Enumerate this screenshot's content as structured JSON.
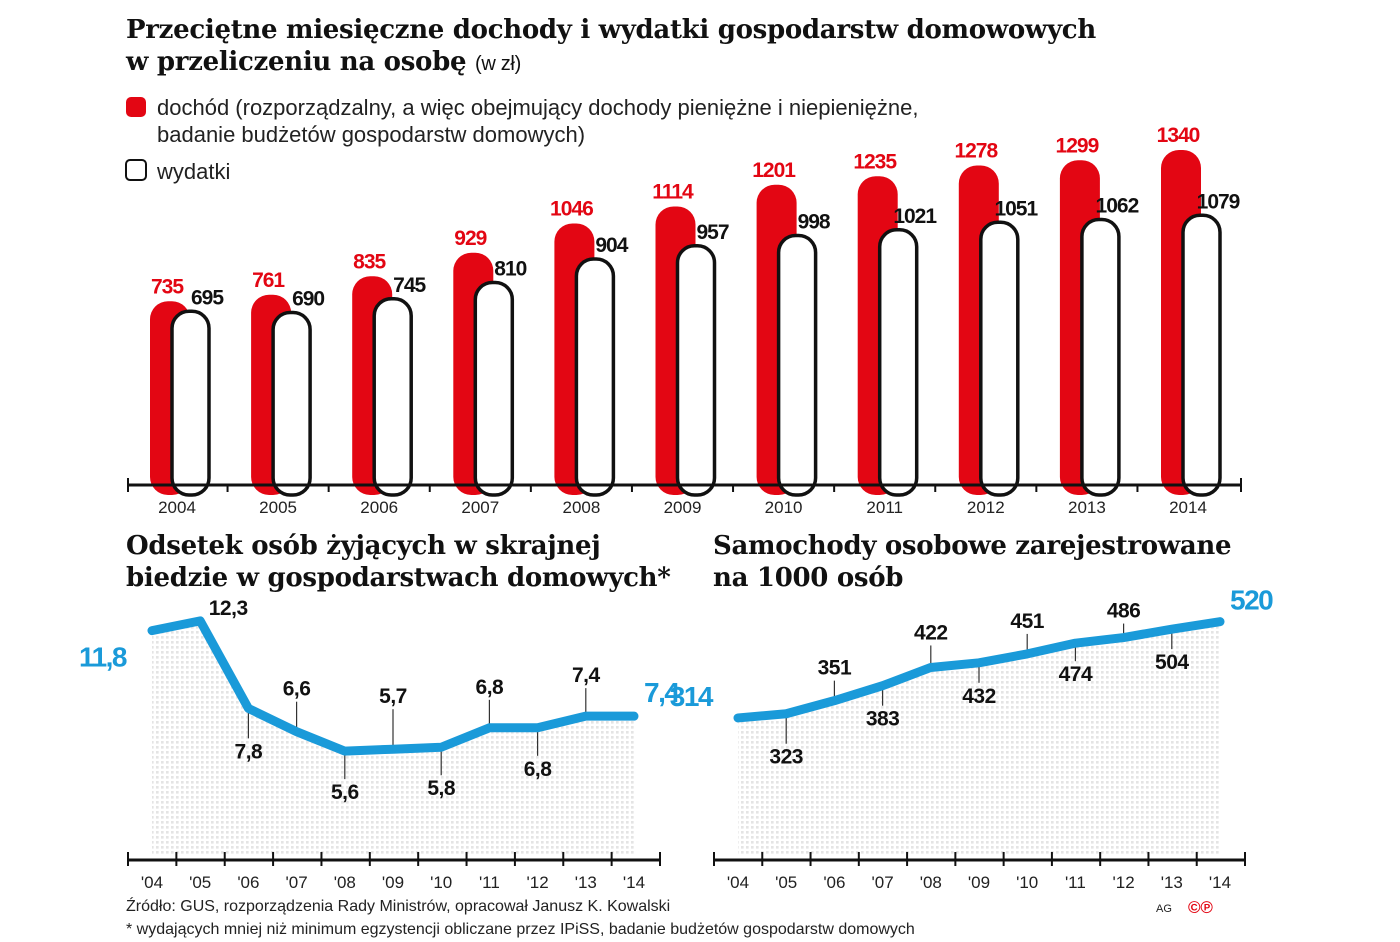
{
  "main_title": {
    "line1": "Przeciętne miesięczne dochody i wydatki gospodarstw domowowych",
    "line2": "w przeliczeniu na osobę",
    "unit": "(w zł)"
  },
  "legend": {
    "income_line1": "dochód (rozporządzalny, a więc obejmujący dochody pieniężne i niepieniężne,",
    "income_line2": "badanie budżetów gospodarstw domowych)",
    "expenses": "wydatki"
  },
  "colors": {
    "income": "#e30613",
    "expenses": "#ffffff",
    "line": "#1a9ad9",
    "text": "#111111"
  },
  "chart_data": [
    {
      "type": "bar",
      "categories": [
        "2004",
        "2005",
        "2006",
        "2007",
        "2008",
        "2009",
        "2010",
        "2011",
        "2012",
        "2013",
        "2014"
      ],
      "series": [
        {
          "name": "dochód",
          "values": [
            735,
            761,
            835,
            929,
            1046,
            1114,
            1201,
            1235,
            1278,
            1299,
            1340
          ]
        },
        {
          "name": "wydatki",
          "values": [
            695,
            690,
            745,
            810,
            904,
            957,
            998,
            1021,
            1051,
            1062,
            1079
          ]
        }
      ],
      "ylim": [
        0,
        1400
      ],
      "grid": false
    },
    {
      "type": "line",
      "title_line1": "Odsetek osób żyjących w skrajnej",
      "title_line2": "biedzie w gospodarstwach domowych*",
      "categories": [
        "'04",
        "'05",
        "'06",
        "'07",
        "'08",
        "'09",
        "'10",
        "'11",
        "'12",
        "'13",
        "'14"
      ],
      "values": [
        11.8,
        12.3,
        7.8,
        6.6,
        5.6,
        5.7,
        5.8,
        6.8,
        6.8,
        7.4,
        7.4
      ],
      "labels": [
        "11,8",
        "12,3",
        "7,8",
        "6,6",
        "5,6",
        "5,7",
        "5,8",
        "6,8",
        "6,8",
        "7,4",
        "7,4"
      ],
      "ylim": [
        0,
        12.5
      ],
      "grid": false
    },
    {
      "type": "line",
      "title_line1": "Samochody osobowe zarejestrowane",
      "title_line2": "na 1000 osób",
      "categories": [
        "'04",
        "'05",
        "'06",
        "'07",
        "'08",
        "'09",
        "'10",
        "'11",
        "'12",
        "'13",
        "'14"
      ],
      "values": [
        314,
        323,
        351,
        383,
        422,
        432,
        451,
        474,
        486,
        504,
        520
      ],
      "labels": [
        "314",
        "323",
        "351",
        "383",
        "422",
        "432",
        "451",
        "474",
        "486",
        "504",
        "520"
      ],
      "ylim": [
        10,
        530
      ],
      "grid": false
    }
  ],
  "footer": {
    "source": "Źródło: GUS, rozporządzenia Rady Ministrów, opracował Janusz K. Kowalski",
    "note": "* wydających mniej niż minimum egzystencji obliczane przez IPiSS, badanie budżetów gospodarstw domowych",
    "author": "AG",
    "copyright": "©℗"
  }
}
